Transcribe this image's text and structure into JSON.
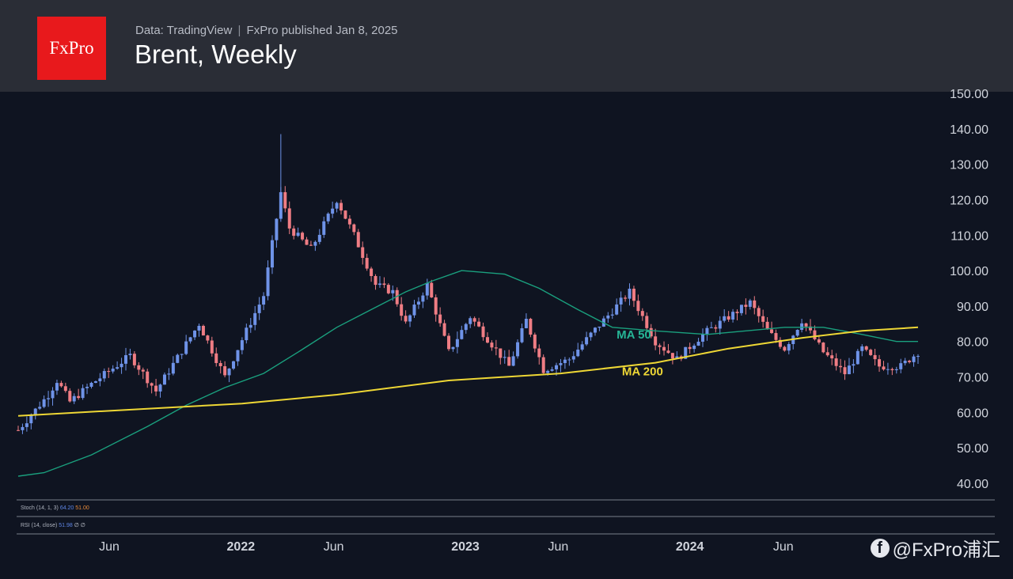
{
  "header": {
    "logo_text": "FxPro",
    "source": "Data: TradingView",
    "separator": "|",
    "published": "FxPro published Jan 8, 2025",
    "title": "Brent, Weekly"
  },
  "watermark": "@FxPro浦汇",
  "colors": {
    "up": "#6f93e8",
    "down": "#ef7d84",
    "ma50": "#1aa07e",
    "ma200": "#eed735",
    "logo_bg": "#e8191c",
    "label_ma50": "#26b596"
  },
  "chart_data": {
    "type": "candlestick",
    "title": "Brent, Weekly",
    "ylim": [
      40,
      150
    ],
    "y_ticks": [
      "40.00",
      "50.00",
      "60.00",
      "70.00",
      "80.00",
      "90.00",
      "100.00",
      "110.00",
      "120.00",
      "130.00",
      "140.00",
      "150.00"
    ],
    "x_range": [
      "2021-01-04",
      "2025-01-06"
    ],
    "x_ticks": [
      {
        "label": "Jun",
        "date": "2021-06-01",
        "major": false
      },
      {
        "label": "2022",
        "date": "2022-01-01",
        "major": true
      },
      {
        "label": "Jun",
        "date": "2022-06-01",
        "major": false
      },
      {
        "label": "2023",
        "date": "2023-01-01",
        "major": true
      },
      {
        "label": "Jun",
        "date": "2023-06-01",
        "major": false
      },
      {
        "label": "2024",
        "date": "2024-01-01",
        "major": true
      },
      {
        "label": "Jun",
        "date": "2024-06-01",
        "major": false
      }
    ],
    "price_path": [
      [
        "2021-01-04",
        55
      ],
      [
        "2021-02-22",
        65
      ],
      [
        "2021-03-08",
        69
      ],
      [
        "2021-03-29",
        63
      ],
      [
        "2021-05-03",
        68
      ],
      [
        "2021-07-05",
        76
      ],
      [
        "2021-08-16",
        66
      ],
      [
        "2021-10-25",
        85
      ],
      [
        "2021-12-06",
        70
      ],
      [
        "2021-12-27",
        78
      ],
      [
        "2022-02-07",
        93
      ],
      [
        "2022-03-07",
        122
      ],
      [
        "2022-03-21",
        112
      ],
      [
        "2022-04-25",
        106
      ],
      [
        "2022-06-06",
        120
      ],
      [
        "2022-07-04",
        110
      ],
      [
        "2022-08-08",
        96
      ],
      [
        "2022-09-05",
        94
      ],
      [
        "2022-09-26",
        85
      ],
      [
        "2022-10-31",
        96
      ],
      [
        "2022-12-05",
        77
      ],
      [
        "2023-01-09",
        87
      ],
      [
        "2023-03-13",
        73
      ],
      [
        "2023-04-10",
        86
      ],
      [
        "2023-05-08",
        72
      ],
      [
        "2023-06-19",
        75
      ],
      [
        "2023-07-24",
        82
      ],
      [
        "2023-09-25",
        94
      ],
      [
        "2023-11-06",
        80
      ],
      [
        "2023-12-11",
        75
      ],
      [
        "2024-01-22",
        82
      ],
      [
        "2024-04-08",
        91
      ],
      [
        "2024-05-06",
        83
      ],
      [
        "2024-06-03",
        78
      ],
      [
        "2024-07-01",
        86
      ],
      [
        "2024-08-05",
        77
      ],
      [
        "2024-09-09",
        71
      ],
      [
        "2024-10-07",
        78
      ],
      [
        "2024-11-04",
        73
      ],
      [
        "2024-12-09",
        73
      ],
      [
        "2025-01-06",
        77
      ]
    ],
    "series": [
      {
        "name": "MA 50",
        "points": [
          [
            "2021-01-04",
            42
          ],
          [
            "2021-02-15",
            43
          ],
          [
            "2021-05-03",
            48
          ],
          [
            "2021-08-02",
            56
          ],
          [
            "2021-10-04",
            62
          ],
          [
            "2021-12-06",
            67
          ],
          [
            "2022-02-07",
            71
          ],
          [
            "2022-04-04",
            77
          ],
          [
            "2022-06-06",
            84
          ],
          [
            "2022-08-01",
            89
          ],
          [
            "2022-09-26",
            94
          ],
          [
            "2022-11-07",
            97
          ],
          [
            "2022-12-26",
            100
          ],
          [
            "2023-03-06",
            99
          ],
          [
            "2023-05-01",
            95
          ],
          [
            "2023-07-03",
            89
          ],
          [
            "2023-08-28",
            84
          ],
          [
            "2023-11-06",
            83
          ],
          [
            "2024-01-29",
            82
          ],
          [
            "2024-04-01",
            83
          ],
          [
            "2024-06-03",
            84
          ],
          [
            "2024-08-05",
            84
          ],
          [
            "2024-10-07",
            82
          ],
          [
            "2024-12-02",
            80
          ],
          [
            "2025-01-06",
            80
          ]
        ]
      },
      {
        "name": "MA 200",
        "points": [
          [
            "2021-01-04",
            59
          ],
          [
            "2021-06-07",
            60.5
          ],
          [
            "2022-01-03",
            62.5
          ],
          [
            "2022-06-06",
            65
          ],
          [
            "2022-12-05",
            69
          ],
          [
            "2023-06-05",
            71
          ],
          [
            "2023-11-06",
            74
          ],
          [
            "2024-03-04",
            78
          ],
          [
            "2024-07-01",
            81
          ],
          [
            "2024-10-07",
            83
          ],
          [
            "2025-01-06",
            84
          ]
        ]
      }
    ],
    "annotations": [
      {
        "text": "MA 50",
        "date": "2023-10-02",
        "value": 80.8
      },
      {
        "text": "MA 200",
        "date": "2023-10-16",
        "value": 70.5
      }
    ],
    "indicators": [
      {
        "name": "Stoch (14, 1, 3)",
        "values": [
          "64.20",
          "51.00"
        ]
      },
      {
        "name": "RSI (14, close)",
        "values": [
          "51.98",
          "∅",
          "∅"
        ]
      }
    ]
  }
}
